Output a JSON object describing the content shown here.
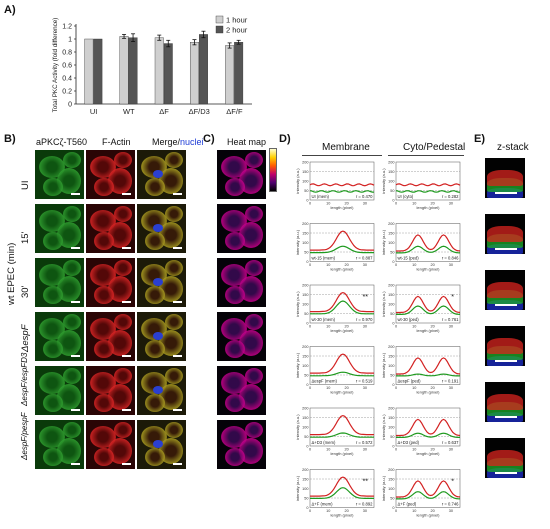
{
  "panel_labels": {
    "a": "A)",
    "b": "B)",
    "c": "C)",
    "d": "D)",
    "e": "E)"
  },
  "chart_data": {
    "type": "bar",
    "categories": [
      "UI",
      "WT",
      "ΔF",
      "ΔF/D3",
      "ΔF/F"
    ],
    "series": [
      {
        "name": "1 hour",
        "values": [
          1.0,
          1.04,
          1.02,
          0.95,
          0.9
        ]
      },
      {
        "name": "2 hour",
        "values": [
          1.0,
          1.02,
          0.93,
          1.07,
          0.95
        ]
      }
    ],
    "errors": [
      [
        0.0,
        0.03,
        0.04,
        0.04,
        0.04
      ],
      [
        0.0,
        0.06,
        0.05,
        0.05,
        0.03
      ]
    ],
    "ylabel": "Total PKC Activity (fold difference)",
    "yticks": [
      "0",
      "0.2",
      "0.4",
      "0.6",
      "0.8",
      "1",
      "1.2"
    ],
    "ylim": [
      0,
      1.2
    ],
    "legend_position": "top-right",
    "colors": {
      "1 hour": "#cfcfcf",
      "2 hour": "#555555"
    }
  },
  "panel_b": {
    "col_headers": {
      "apkc": "aPKCζ-T560",
      "factin": "F-Actin",
      "merge": "Merge/",
      "nuclei": "nuclei"
    },
    "rows": [
      {
        "label": "UI",
        "italic": false
      },
      {
        "label": "15'",
        "italic": false
      },
      {
        "label": "30'",
        "italic": false
      },
      {
        "label": "ΔespF",
        "italic": true
      },
      {
        "label": "ΔespF/espFD3",
        "italic": true
      },
      {
        "label": "ΔespF/pespF",
        "italic": true
      }
    ],
    "group_label": "wt EPEC (min)"
  },
  "panel_c": {
    "title": "Heat map"
  },
  "panel_d": {
    "col_membrane": "Membrane",
    "col_cyto": "Cyto/Pedestal",
    "ylabel": "intensity (a.u.)",
    "xlabel": "length (pixel)",
    "yticks": [
      "0",
      "50",
      "100",
      "150",
      "200"
    ],
    "xticks": [
      "0",
      "10",
      "20",
      "30"
    ],
    "plots": [
      {
        "mem": {
          "tag": "UI (mem)",
          "r": "r = 0.470",
          "stars": ""
        },
        "ped": {
          "tag": "UI (cyto)",
          "r": "r = 0.282",
          "stars": ""
        }
      },
      {
        "mem": {
          "tag": "wt-15 (mem)",
          "r": "r = 0.887",
          "stars": ""
        },
        "ped": {
          "tag": "wt-15 (ped)",
          "r": "r = 0.846",
          "stars": ""
        }
      },
      {
        "mem": {
          "tag": "wt-30 (mem)",
          "r": "r = 0.970",
          "stars": "**"
        },
        "ped": {
          "tag": "wt-30 (ped)",
          "r": "r = 0.761",
          "stars": "*"
        }
      },
      {
        "mem": {
          "tag": "ΔespF (mem)",
          "r": "r = 0.519",
          "stars": ""
        },
        "ped": {
          "tag": "ΔespF (ped)",
          "r": "r = 0.191",
          "stars": ""
        }
      },
      {
        "mem": {
          "tag": "Δ+D3 (mem)",
          "r": "r = 0.572",
          "stars": ""
        },
        "ped": {
          "tag": "Δ+D3 (ped)",
          "r": "r = 0.637",
          "stars": ""
        }
      },
      {
        "mem": {
          "tag": "Δ+F (mem)",
          "r": "r = 0.892",
          "stars": "**"
        },
        "ped": {
          "tag": "Δ+F (ped)",
          "r": "r = 0.746",
          "stars": "*"
        }
      }
    ]
  },
  "panel_e": {
    "title": "z-stack"
  }
}
